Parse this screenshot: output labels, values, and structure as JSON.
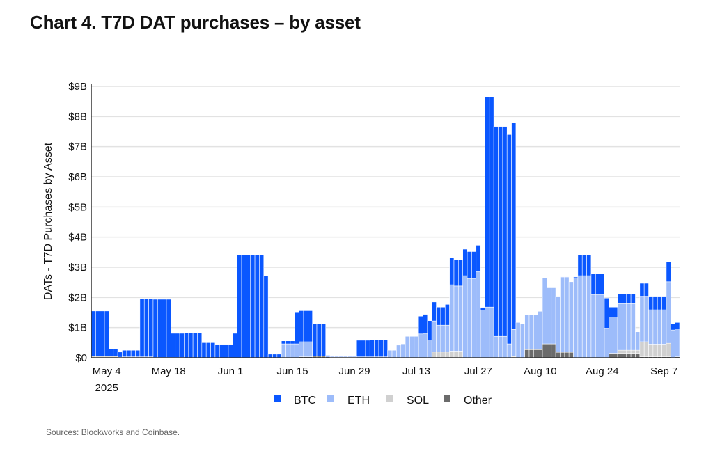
{
  "chart_data": {
    "type": "bar",
    "stacked": true,
    "title": "Chart 4. T7D DAT purchases – by asset",
    "ylabel": "DATs - T7D Purchases by Asset",
    "xlabel": "",
    "ylim": [
      0,
      9
    ],
    "y_unit": "B USD",
    "y_ticks": [
      "$0",
      "$1B",
      "$2B",
      "$3B",
      "$4B",
      "$5B",
      "$6B",
      "$7B",
      "$8B",
      "$9B"
    ],
    "x_ticks": [
      {
        "date": "2025-05-04",
        "label": "May 4",
        "sublabel": "2025"
      },
      {
        "date": "2025-05-18",
        "label": "May 18"
      },
      {
        "date": "2025-06-01",
        "label": "Jun 1"
      },
      {
        "date": "2025-06-15",
        "label": "Jun 15"
      },
      {
        "date": "2025-06-29",
        "label": "Jun 29"
      },
      {
        "date": "2025-07-13",
        "label": "Jul 13"
      },
      {
        "date": "2025-07-27",
        "label": "Jul 27"
      },
      {
        "date": "2025-08-10",
        "label": "Aug 10"
      },
      {
        "date": "2025-08-24",
        "label": "Aug 24"
      },
      {
        "date": "2025-09-07",
        "label": "Sep 7"
      }
    ],
    "grid": "horizontal",
    "legend_position": "bottom",
    "dates": [
      "2025-05-01",
      "2025-05-02",
      "2025-05-03",
      "2025-05-04",
      "2025-05-05",
      "2025-05-06",
      "2025-05-07",
      "2025-05-08",
      "2025-05-09",
      "2025-05-10",
      "2025-05-11",
      "2025-05-12",
      "2025-05-13",
      "2025-05-14",
      "2025-05-15",
      "2025-05-16",
      "2025-05-17",
      "2025-05-18",
      "2025-05-19",
      "2025-05-20",
      "2025-05-21",
      "2025-05-22",
      "2025-05-23",
      "2025-05-24",
      "2025-05-25",
      "2025-05-26",
      "2025-05-27",
      "2025-05-28",
      "2025-05-29",
      "2025-05-30",
      "2025-05-31",
      "2025-06-01",
      "2025-06-02",
      "2025-06-03",
      "2025-06-04",
      "2025-06-05",
      "2025-06-06",
      "2025-06-07",
      "2025-06-08",
      "2025-06-09",
      "2025-06-10",
      "2025-06-11",
      "2025-06-12",
      "2025-06-13",
      "2025-06-14",
      "2025-06-15",
      "2025-06-16",
      "2025-06-17",
      "2025-06-18",
      "2025-06-19",
      "2025-06-20",
      "2025-06-21",
      "2025-06-22",
      "2025-06-23",
      "2025-06-24",
      "2025-06-25",
      "2025-06-26",
      "2025-06-27",
      "2025-06-28",
      "2025-06-29",
      "2025-06-30",
      "2025-07-01",
      "2025-07-02",
      "2025-07-03",
      "2025-07-04",
      "2025-07-05",
      "2025-07-06",
      "2025-07-07",
      "2025-07-08",
      "2025-07-09",
      "2025-07-10",
      "2025-07-11",
      "2025-07-12",
      "2025-07-13",
      "2025-07-14",
      "2025-07-15",
      "2025-07-16",
      "2025-07-17",
      "2025-07-18",
      "2025-07-19",
      "2025-07-20",
      "2025-07-21",
      "2025-07-22",
      "2025-07-23",
      "2025-07-24",
      "2025-07-25",
      "2025-07-26",
      "2025-07-27",
      "2025-07-28",
      "2025-07-29",
      "2025-07-30",
      "2025-07-31",
      "2025-08-01",
      "2025-08-02",
      "2025-08-03",
      "2025-08-04",
      "2025-08-05",
      "2025-08-06",
      "2025-08-07",
      "2025-08-08",
      "2025-08-09",
      "2025-08-10",
      "2025-08-11",
      "2025-08-12",
      "2025-08-13",
      "2025-08-14",
      "2025-08-15",
      "2025-08-16",
      "2025-08-17",
      "2025-08-18",
      "2025-08-19",
      "2025-08-20",
      "2025-08-21",
      "2025-08-22",
      "2025-08-23",
      "2025-08-24",
      "2025-08-25",
      "2025-08-26",
      "2025-08-27",
      "2025-08-28",
      "2025-08-29",
      "2025-08-30",
      "2025-08-31",
      "2025-09-01",
      "2025-09-02",
      "2025-09-03",
      "2025-09-04",
      "2025-09-05",
      "2025-09-06",
      "2025-09-07",
      "2025-09-08",
      "2025-09-09",
      "2025-09-10"
    ],
    "series": [
      {
        "name": "Other",
        "color": "#6b6b6b",
        "values": [
          0,
          0,
          0,
          0,
          0,
          0,
          0,
          0,
          0,
          0,
          0,
          0,
          0,
          0,
          0,
          0,
          0,
          0,
          0,
          0,
          0,
          0,
          0,
          0,
          0,
          0,
          0,
          0,
          0,
          0,
          0,
          0,
          0,
          0,
          0,
          0,
          0,
          0,
          0,
          0,
          0,
          0,
          0,
          0,
          0,
          0,
          0,
          0.03,
          0.03,
          0.03,
          0.05,
          0.05,
          0.05,
          0.03,
          0,
          0,
          0,
          0,
          0,
          0,
          0,
          0,
          0,
          0,
          0,
          0,
          0,
          0,
          0,
          0,
          0,
          0,
          0,
          0,
          0,
          0,
          0,
          0,
          0,
          0,
          0,
          0,
          0,
          0,
          0,
          0,
          0,
          0,
          0,
          0,
          0,
          0,
          0,
          0,
          0,
          0,
          0,
          0,
          0.27,
          0.27,
          0.27,
          0.27,
          0.46,
          0.46,
          0.46,
          0.18,
          0.18,
          0.18,
          0.18,
          0,
          0,
          0,
          0,
          0,
          0,
          0,
          0,
          0.15,
          0.15,
          0.15,
          0.15,
          0.15,
          0.15,
          0.15,
          0.03,
          0.03,
          0.03,
          0.03,
          0.03,
          0.03,
          0.03,
          0,
          0.03
        ]
      },
      {
        "name": "SOL",
        "color": "#d0d0d0",
        "values": [
          0.05,
          0.05,
          0.05,
          0.05,
          0.05,
          0.05,
          0.02,
          0.03,
          0.03,
          0.03,
          0.03,
          0.03,
          0.03,
          0.03,
          0.01,
          0.01,
          0.01,
          0.01,
          0.01,
          0.01,
          0.01,
          0,
          0,
          0,
          0,
          0,
          0,
          0,
          0,
          0,
          0,
          0,
          0,
          0,
          0,
          0,
          0,
          0,
          0,
          0,
          0,
          0,
          0,
          0,
          0,
          0,
          0,
          0,
          0,
          0,
          0,
          0,
          0,
          0,
          0,
          0,
          0,
          0,
          0,
          0,
          0,
          0,
          0,
          0,
          0,
          0,
          0,
          0,
          0,
          0,
          0,
          0,
          0,
          0,
          0,
          0,
          0,
          0.19,
          0.19,
          0.19,
          0.19,
          0.22,
          0.22,
          0.22,
          0,
          0,
          0,
          0,
          0,
          0,
          0,
          0,
          0,
          0,
          0,
          0.04,
          0,
          0,
          0,
          0,
          0,
          0,
          0,
          0,
          0,
          0,
          0,
          0,
          0,
          0,
          0,
          0,
          0,
          0,
          0,
          0,
          0,
          0,
          0,
          0.1,
          0.1,
          0.1,
          0.1,
          0.1,
          0.5,
          0.5,
          0.42,
          0.42,
          0.42,
          0.42,
          0.45,
          0,
          0
        ]
      },
      {
        "name": "ETH",
        "color": "#9dbcfa",
        "values": [
          0,
          0,
          0,
          0,
          0,
          0,
          0,
          0,
          0,
          0,
          0,
          0,
          0,
          0,
          0,
          0,
          0,
          0,
          0,
          0,
          0,
          0,
          0,
          0,
          0,
          0,
          0,
          0,
          0,
          0,
          0,
          0,
          0,
          0,
          0,
          0,
          0,
          0,
          0,
          0,
          0,
          0,
          0,
          0.46,
          0.46,
          0.46,
          0.46,
          0.5,
          0.5,
          0.5,
          0,
          0,
          0,
          0,
          0.02,
          0.02,
          0.02,
          0.02,
          0.02,
          0.02,
          0.03,
          0.03,
          0.03,
          0.03,
          0.03,
          0.03,
          0.03,
          0.25,
          0.25,
          0.42,
          0.46,
          0.71,
          0.71,
          0.71,
          0.79,
          0.81,
          0.59,
          1.03,
          0.89,
          0.89,
          0.89,
          2.2,
          2.16,
          2.16,
          2.72,
          2.63,
          2.63,
          2.85,
          1.58,
          1.68,
          1.68,
          0.71,
          0.71,
          0.71,
          0.46,
          0.9,
          1.17,
          1.13,
          1.15,
          1.15,
          1.15,
          1.27,
          2.19,
          1.86,
          1.86,
          1.86,
          2.48,
          2.48,
          2.34,
          2.65,
          2.72,
          2.72,
          2.72,
          2.1,
          2.1,
          2.1,
          0.98,
          1.2,
          1.2,
          1.54,
          1.54,
          1.54,
          1.54,
          0.61,
          1.51,
          1.51,
          1.14,
          1.14,
          1.14,
          1.14,
          2.04,
          0.92,
          0.93
        ]
      },
      {
        "name": "BTC",
        "color": "#0a57ff",
        "values": [
          1.5,
          1.5,
          1.5,
          1.5,
          0.24,
          0.24,
          0.17,
          0.22,
          0.22,
          0.22,
          0.22,
          1.93,
          1.93,
          1.93,
          1.93,
          1.93,
          1.93,
          1.93,
          0.8,
          0.8,
          0.8,
          0.83,
          0.83,
          0.83,
          0.83,
          0.5,
          0.5,
          0.5,
          0.44,
          0.44,
          0.44,
          0.44,
          0.81,
          3.42,
          3.42,
          3.42,
          3.42,
          3.42,
          3.42,
          2.73,
          0.12,
          0.12,
          0.12,
          0.1,
          0.1,
          0.1,
          1.06,
          1.03,
          1.03,
          1.03,
          1.08,
          1.08,
          1.08,
          0.05,
          0.02,
          0.02,
          0.02,
          0.02,
          0.02,
          0.02,
          0.55,
          0.55,
          0.55,
          0.57,
          0.57,
          0.57,
          0.57,
          0,
          0,
          0,
          0,
          0,
          0,
          0,
          0.59,
          0.63,
          0.64,
          0.63,
          0.6,
          0.6,
          0.69,
          0.9,
          0.87,
          0.87,
          0.88,
          0.89,
          0.89,
          0.88,
          0.09,
          6.96,
          6.96,
          6.96,
          6.96,
          6.96,
          6.94,
          6.86,
          0,
          0,
          0,
          0,
          0,
          0,
          0,
          0,
          0,
          0,
          0.02,
          0.02,
          0,
          0.03,
          0.68,
          0.68,
          0.68,
          0.68,
          0.68,
          0.68,
          1.0,
          0.33,
          0.33,
          0.34,
          0.34,
          0.34,
          0.34,
          0,
          0.43,
          0.43,
          0.45,
          0.45,
          0.45,
          0.45,
          0.65,
          0.21,
          0.21
        ]
      }
    ],
    "legend": [
      "BTC",
      "ETH",
      "SOL",
      "Other"
    ]
  },
  "source": "Sources: Blockworks and Coinbase."
}
